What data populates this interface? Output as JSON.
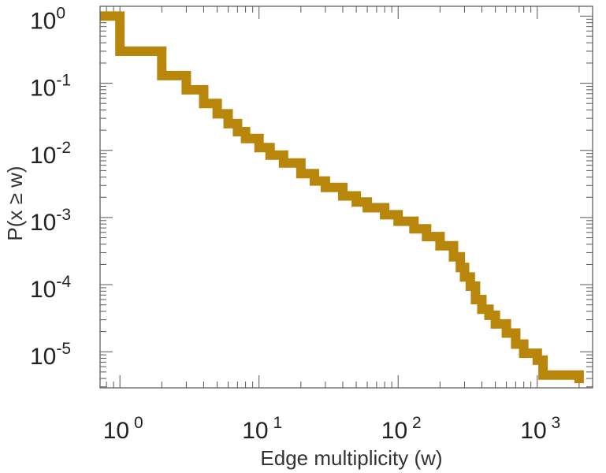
{
  "chart_data": {
    "type": "line",
    "xlabel": "Edge multiplicity (w)",
    "ylabel": "P(x ≥ w)",
    "xscale": "log",
    "yscale": "log",
    "xlim": [
      0.72,
      2500
    ],
    "ylim": [
      2.9e-06,
      1.4
    ],
    "x_tick_labels": [
      {
        "value": 1,
        "base": "10",
        "exp": "0"
      },
      {
        "value": 10,
        "base": "10",
        "exp": "1"
      },
      {
        "value": 100,
        "base": "10",
        "exp": "2"
      },
      {
        "value": 1000,
        "base": "10",
        "exp": "3"
      }
    ],
    "y_tick_labels": [
      {
        "value": 1,
        "base": "10",
        "exp": "0"
      },
      {
        "value": 0.1,
        "base": "10",
        "exp": "-1"
      },
      {
        "value": 0.01,
        "base": "10",
        "exp": "-2"
      },
      {
        "value": 0.001,
        "base": "10",
        "exp": "-3"
      },
      {
        "value": 0.0001,
        "base": "10",
        "exp": "-4"
      },
      {
        "value": 1e-05,
        "base": "10",
        "exp": "-5"
      }
    ],
    "grid": false,
    "series": [
      {
        "color": "#b8860b",
        "step": true,
        "x": [
          0.72,
          1,
          2,
          3,
          4,
          5,
          6,
          7,
          8,
          10,
          12,
          15,
          20,
          25,
          30,
          40,
          50,
          60,
          80,
          100,
          130,
          160,
          200,
          250,
          280,
          300,
          330,
          360,
          400,
          450,
          500,
          600,
          700,
          800,
          1000,
          1100,
          1600,
          2000
        ],
        "y": [
          1.0,
          0.3,
          0.13,
          0.08,
          0.05,
          0.035,
          0.025,
          0.019,
          0.015,
          0.011,
          0.0085,
          0.0065,
          0.0045,
          0.0035,
          0.0028,
          0.0021,
          0.0017,
          0.0014,
          0.0011,
          0.00088,
          0.00068,
          0.00052,
          0.00038,
          0.00026,
          0.00018,
          0.00013,
          9.5e-05,
          6e-05,
          4.3e-05,
          3.5e-05,
          2.6e-05,
          1.9e-05,
          1.3e-05,
          9.5e-06,
          7.5e-06,
          4.5e-06,
          4.5e-06,
          3.4e-06
        ]
      }
    ]
  }
}
